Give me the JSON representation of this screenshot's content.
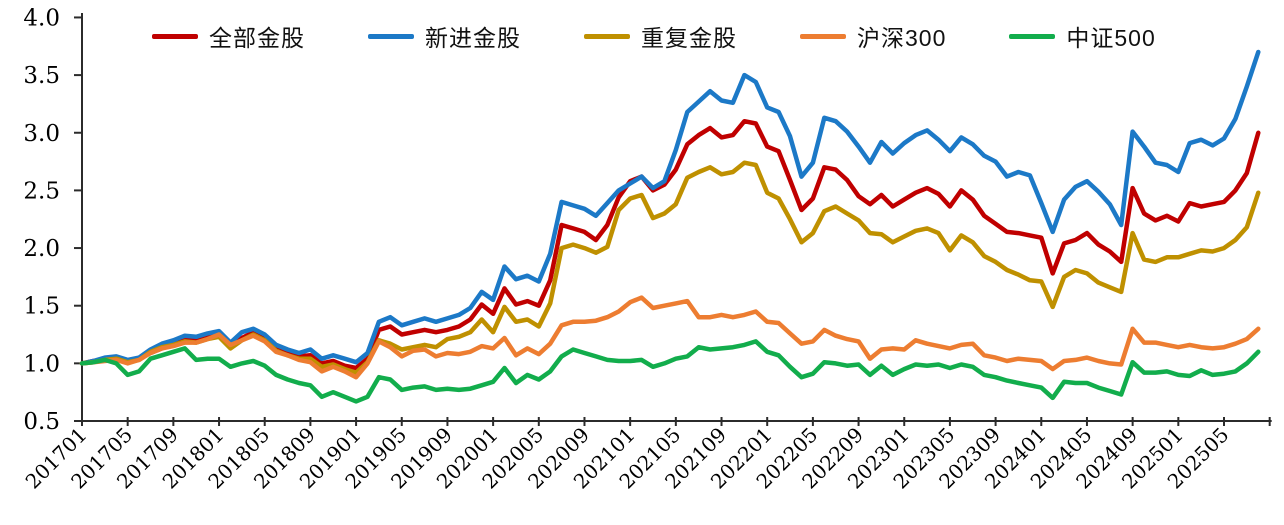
{
  "chart_data": {
    "type": "line",
    "title": "",
    "xlabel": "",
    "ylabel": "",
    "grid": false,
    "legend_position": "top",
    "ylim": [
      0.5,
      4.0
    ],
    "y_tick_labels": [
      "0.5",
      "1.0",
      "1.5",
      "2.0",
      "2.5",
      "3.0",
      "3.5",
      "4.0"
    ],
    "y_ticks": [
      0.5,
      1.0,
      1.5,
      2.0,
      2.5,
      3.0,
      3.5,
      4.0
    ],
    "x_tick_labels": [
      "201701",
      "201705",
      "201709",
      "201801",
      "201805",
      "201809",
      "201901",
      "201905",
      "201909",
      "202001",
      "202005",
      "202009",
      "202101",
      "202105",
      "202109",
      "202201",
      "202205",
      "202209",
      "202301",
      "202305",
      "202309",
      "202401",
      "202405",
      "202409",
      "202501",
      "202505"
    ],
    "months": [
      "201701",
      "201702",
      "201703",
      "201704",
      "201705",
      "201706",
      "201707",
      "201708",
      "201709",
      "201710",
      "201711",
      "201712",
      "201801",
      "201802",
      "201803",
      "201804",
      "201805",
      "201806",
      "201807",
      "201808",
      "201809",
      "201810",
      "201811",
      "201812",
      "201901",
      "201902",
      "201903",
      "201904",
      "201905",
      "201906",
      "201907",
      "201908",
      "201909",
      "201910",
      "201911",
      "201912",
      "202001",
      "202002",
      "202003",
      "202004",
      "202005",
      "202006",
      "202007",
      "202008",
      "202009",
      "202010",
      "202011",
      "202012",
      "202101",
      "202102",
      "202103",
      "202104",
      "202105",
      "202106",
      "202107",
      "202108",
      "202109",
      "202110",
      "202111",
      "202112",
      "202201",
      "202202",
      "202203",
      "202204",
      "202205",
      "202206",
      "202207",
      "202208",
      "202209",
      "202210",
      "202211",
      "202212",
      "202301",
      "202302",
      "202303",
      "202304",
      "202305",
      "202306",
      "202307",
      "202308",
      "202309",
      "202310",
      "202311",
      "202312",
      "202401",
      "202402",
      "202403",
      "202404",
      "202405",
      "202406",
      "202407",
      "202408",
      "202409",
      "202410",
      "202411",
      "202412",
      "202501",
      "202502",
      "202503",
      "202504",
      "202505",
      "202506",
      "202507",
      "202508"
    ],
    "series": [
      {
        "name": "全部金股",
        "color": "#C00000",
        "values": [
          1.0,
          1.02,
          1.03,
          1.04,
          1.02,
          1.04,
          1.09,
          1.13,
          1.17,
          1.2,
          1.2,
          1.23,
          1.24,
          1.14,
          1.22,
          1.27,
          1.21,
          1.12,
          1.09,
          1.06,
          1.07,
          1.0,
          1.02,
          0.98,
          0.96,
          1.04,
          1.29,
          1.32,
          1.25,
          1.27,
          1.29,
          1.27,
          1.29,
          1.32,
          1.38,
          1.51,
          1.43,
          1.65,
          1.51,
          1.54,
          1.5,
          1.72,
          2.2,
          2.17,
          2.14,
          2.07,
          2.2,
          2.44,
          2.58,
          2.62,
          2.5,
          2.55,
          2.68,
          2.9,
          2.98,
          3.04,
          2.96,
          2.98,
          3.1,
          3.08,
          2.88,
          2.84,
          2.59,
          2.33,
          2.43,
          2.7,
          2.68,
          2.59,
          2.45,
          2.38,
          2.46,
          2.36,
          2.42,
          2.48,
          2.52,
          2.47,
          2.36,
          2.5,
          2.42,
          2.28,
          2.21,
          2.14,
          2.13,
          2.11,
          2.09,
          1.78,
          2.04,
          2.07,
          2.13,
          2.03,
          1.97,
          1.88,
          2.52,
          2.3,
          2.24,
          2.28,
          2.23,
          2.39,
          2.36,
          2.38,
          2.4,
          2.5,
          2.65,
          3.0
        ]
      },
      {
        "name": "新进金股",
        "color": "#1C79C7",
        "values": [
          1.0,
          1.02,
          1.05,
          1.06,
          1.03,
          1.05,
          1.12,
          1.17,
          1.2,
          1.24,
          1.23,
          1.26,
          1.28,
          1.18,
          1.27,
          1.3,
          1.25,
          1.16,
          1.12,
          1.09,
          1.12,
          1.04,
          1.07,
          1.04,
          1.01,
          1.09,
          1.36,
          1.4,
          1.33,
          1.36,
          1.39,
          1.36,
          1.39,
          1.42,
          1.48,
          1.62,
          1.55,
          1.84,
          1.73,
          1.76,
          1.71,
          1.95,
          2.4,
          2.37,
          2.34,
          2.28,
          2.39,
          2.5,
          2.56,
          2.62,
          2.52,
          2.58,
          2.85,
          3.18,
          3.27,
          3.36,
          3.28,
          3.26,
          3.5,
          3.44,
          3.22,
          3.18,
          2.97,
          2.62,
          2.74,
          3.13,
          3.1,
          3.01,
          2.88,
          2.74,
          2.92,
          2.82,
          2.91,
          2.98,
          3.02,
          2.94,
          2.84,
          2.96,
          2.9,
          2.8,
          2.75,
          2.62,
          2.66,
          2.63,
          2.39,
          2.14,
          2.42,
          2.53,
          2.58,
          2.49,
          2.38,
          2.2,
          3.01,
          2.88,
          2.74,
          2.72,
          2.66,
          2.91,
          2.94,
          2.89,
          2.95,
          3.12,
          3.4,
          3.7
        ]
      },
      {
        "name": "重复金股",
        "color": "#BF9000",
        "values": [
          1.0,
          1.01,
          1.03,
          1.04,
          1.01,
          1.03,
          1.1,
          1.14,
          1.16,
          1.19,
          1.18,
          1.21,
          1.23,
          1.13,
          1.2,
          1.25,
          1.2,
          1.11,
          1.07,
          1.04,
          1.04,
          0.97,
          0.99,
          0.95,
          0.92,
          1.01,
          1.2,
          1.17,
          1.12,
          1.14,
          1.16,
          1.14,
          1.21,
          1.23,
          1.27,
          1.38,
          1.27,
          1.49,
          1.36,
          1.38,
          1.32,
          1.52,
          2.0,
          2.03,
          2.0,
          1.96,
          2.01,
          2.33,
          2.43,
          2.46,
          2.26,
          2.3,
          2.38,
          2.61,
          2.66,
          2.7,
          2.64,
          2.66,
          2.74,
          2.72,
          2.48,
          2.43,
          2.25,
          2.05,
          2.13,
          2.32,
          2.36,
          2.3,
          2.24,
          2.13,
          2.12,
          2.05,
          2.1,
          2.15,
          2.17,
          2.13,
          1.98,
          2.11,
          2.05,
          1.93,
          1.88,
          1.81,
          1.77,
          1.72,
          1.71,
          1.49,
          1.75,
          1.81,
          1.78,
          1.7,
          1.66,
          1.62,
          2.13,
          1.9,
          1.88,
          1.92,
          1.92,
          1.95,
          1.98,
          1.97,
          2.0,
          2.07,
          2.18,
          2.48
        ]
      },
      {
        "name": "沪深300",
        "color": "#ED7D31",
        "values": [
          1.0,
          1.01,
          1.02,
          1.03,
          1.0,
          1.03,
          1.09,
          1.13,
          1.15,
          1.18,
          1.18,
          1.21,
          1.25,
          1.16,
          1.2,
          1.24,
          1.19,
          1.1,
          1.07,
          1.03,
          1.01,
          0.93,
          0.97,
          0.93,
          0.88,
          1.0,
          1.19,
          1.14,
          1.06,
          1.11,
          1.12,
          1.06,
          1.09,
          1.08,
          1.1,
          1.15,
          1.13,
          1.22,
          1.07,
          1.13,
          1.08,
          1.17,
          1.33,
          1.36,
          1.36,
          1.37,
          1.4,
          1.45,
          1.53,
          1.57,
          1.48,
          1.5,
          1.52,
          1.54,
          1.4,
          1.4,
          1.42,
          1.4,
          1.42,
          1.45,
          1.36,
          1.35,
          1.26,
          1.17,
          1.19,
          1.29,
          1.24,
          1.21,
          1.19,
          1.04,
          1.12,
          1.13,
          1.12,
          1.2,
          1.17,
          1.15,
          1.13,
          1.16,
          1.17,
          1.07,
          1.05,
          1.02,
          1.04,
          1.03,
          1.02,
          0.95,
          1.02,
          1.03,
          1.05,
          1.02,
          1.0,
          0.99,
          1.3,
          1.18,
          1.18,
          1.16,
          1.14,
          1.16,
          1.14,
          1.13,
          1.14,
          1.17,
          1.21,
          1.3
        ]
      },
      {
        "name": "中证500",
        "color": "#12AD4C",
        "values": [
          1.0,
          1.01,
          1.03,
          1.0,
          0.9,
          0.93,
          1.04,
          1.07,
          1.1,
          1.13,
          1.03,
          1.04,
          1.04,
          0.97,
          1.0,
          1.02,
          0.98,
          0.9,
          0.86,
          0.83,
          0.81,
          0.71,
          0.75,
          0.71,
          0.67,
          0.71,
          0.88,
          0.86,
          0.77,
          0.79,
          0.8,
          0.77,
          0.78,
          0.77,
          0.78,
          0.81,
          0.84,
          0.96,
          0.83,
          0.9,
          0.86,
          0.93,
          1.06,
          1.12,
          1.09,
          1.06,
          1.03,
          1.02,
          1.02,
          1.03,
          0.97,
          1.0,
          1.04,
          1.06,
          1.14,
          1.12,
          1.13,
          1.14,
          1.16,
          1.19,
          1.1,
          1.07,
          0.97,
          0.88,
          0.91,
          1.01,
          1.0,
          0.98,
          0.99,
          0.9,
          0.98,
          0.9,
          0.95,
          0.99,
          0.98,
          0.99,
          0.96,
          0.99,
          0.97,
          0.9,
          0.88,
          0.85,
          0.83,
          0.81,
          0.79,
          0.7,
          0.84,
          0.83,
          0.83,
          0.79,
          0.76,
          0.73,
          1.01,
          0.92,
          0.92,
          0.93,
          0.9,
          0.89,
          0.94,
          0.9,
          0.91,
          0.93,
          1.0,
          1.1
        ]
      }
    ]
  }
}
